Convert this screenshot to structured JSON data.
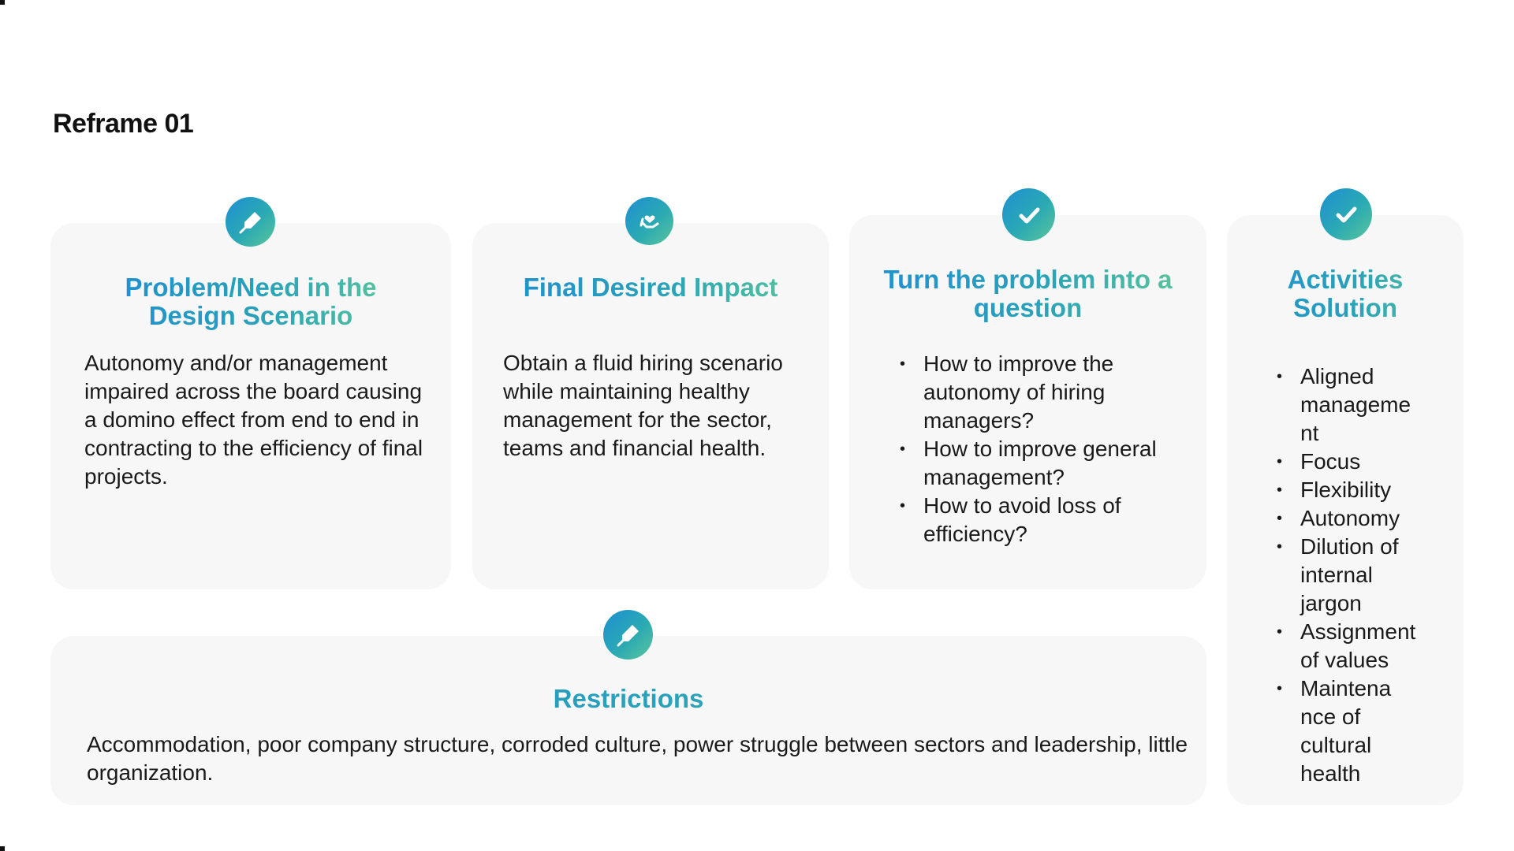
{
  "page": {
    "title": "Reframe 01"
  },
  "problem": {
    "title": "Problem/Need in the Design Scenario",
    "icon": "pen-icon",
    "text": "Autonomy and/or management impaired across the board causing a domino effect from end to end in contracting to the efficiency of final projects."
  },
  "impact": {
    "title": "Final Desired Impact",
    "icon": "hand-heart-icon",
    "text": "Obtain a fluid hiring scenario while maintaining healthy management for the sector, teams and financial health."
  },
  "question": {
    "title": "Turn the problem into a question",
    "icon": "check-icon",
    "items": [
      "How to improve the autonomy of hiring managers?",
      "How to improve general management?",
      "How to avoid loss of efficiency?"
    ]
  },
  "activities": {
    "title": "Activities Solution",
    "icon": "check-icon",
    "items": [
      "Aligned manageme nt",
      "Focus",
      "Flexibility",
      "Autonomy",
      "Dilution of internal jargon",
      "Assignment of values",
      "Maintena nce of cultural health"
    ]
  },
  "restrictions": {
    "title": "Restrictions",
    "icon": "pen-icon",
    "text": "Accommodation, poor company structure, corroded culture, power struggle between sectors and leadership, little organization."
  },
  "colors": {
    "gradient_start": "#1f8fd2",
    "gradient_end": "#5cc69a",
    "card_bg": "#f7f7f7"
  }
}
